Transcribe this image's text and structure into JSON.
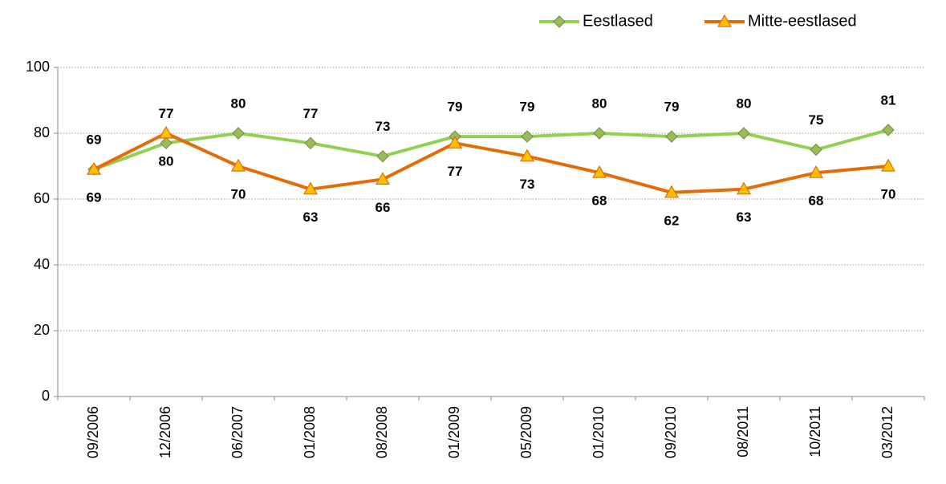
{
  "chart_data": {
    "type": "line",
    "categories": [
      "09/2006",
      "12/2006",
      "06/2007",
      "01/2008",
      "08/2008",
      "01/2009",
      "05/2009",
      "01/2010",
      "09/2010",
      "08/2011",
      "10/2011",
      "03/2012"
    ],
    "series": [
      {
        "name": "Eestlased",
        "color": "#92d050",
        "marker": "diamond",
        "label_position": "above",
        "values": [
          69,
          77,
          80,
          77,
          73,
          79,
          79,
          80,
          79,
          80,
          75,
          81
        ]
      },
      {
        "name": "Mitte-eestlased",
        "color": "#e36c09",
        "marker": "triangle",
        "label_position": "below",
        "values": [
          69,
          80,
          70,
          63,
          66,
          77,
          73,
          68,
          62,
          63,
          68,
          70
        ]
      }
    ],
    "ylim": [
      0,
      100
    ],
    "yticks": [
      0,
      20,
      40,
      60,
      80,
      100
    ],
    "grid": true,
    "legend": "top-right"
  }
}
